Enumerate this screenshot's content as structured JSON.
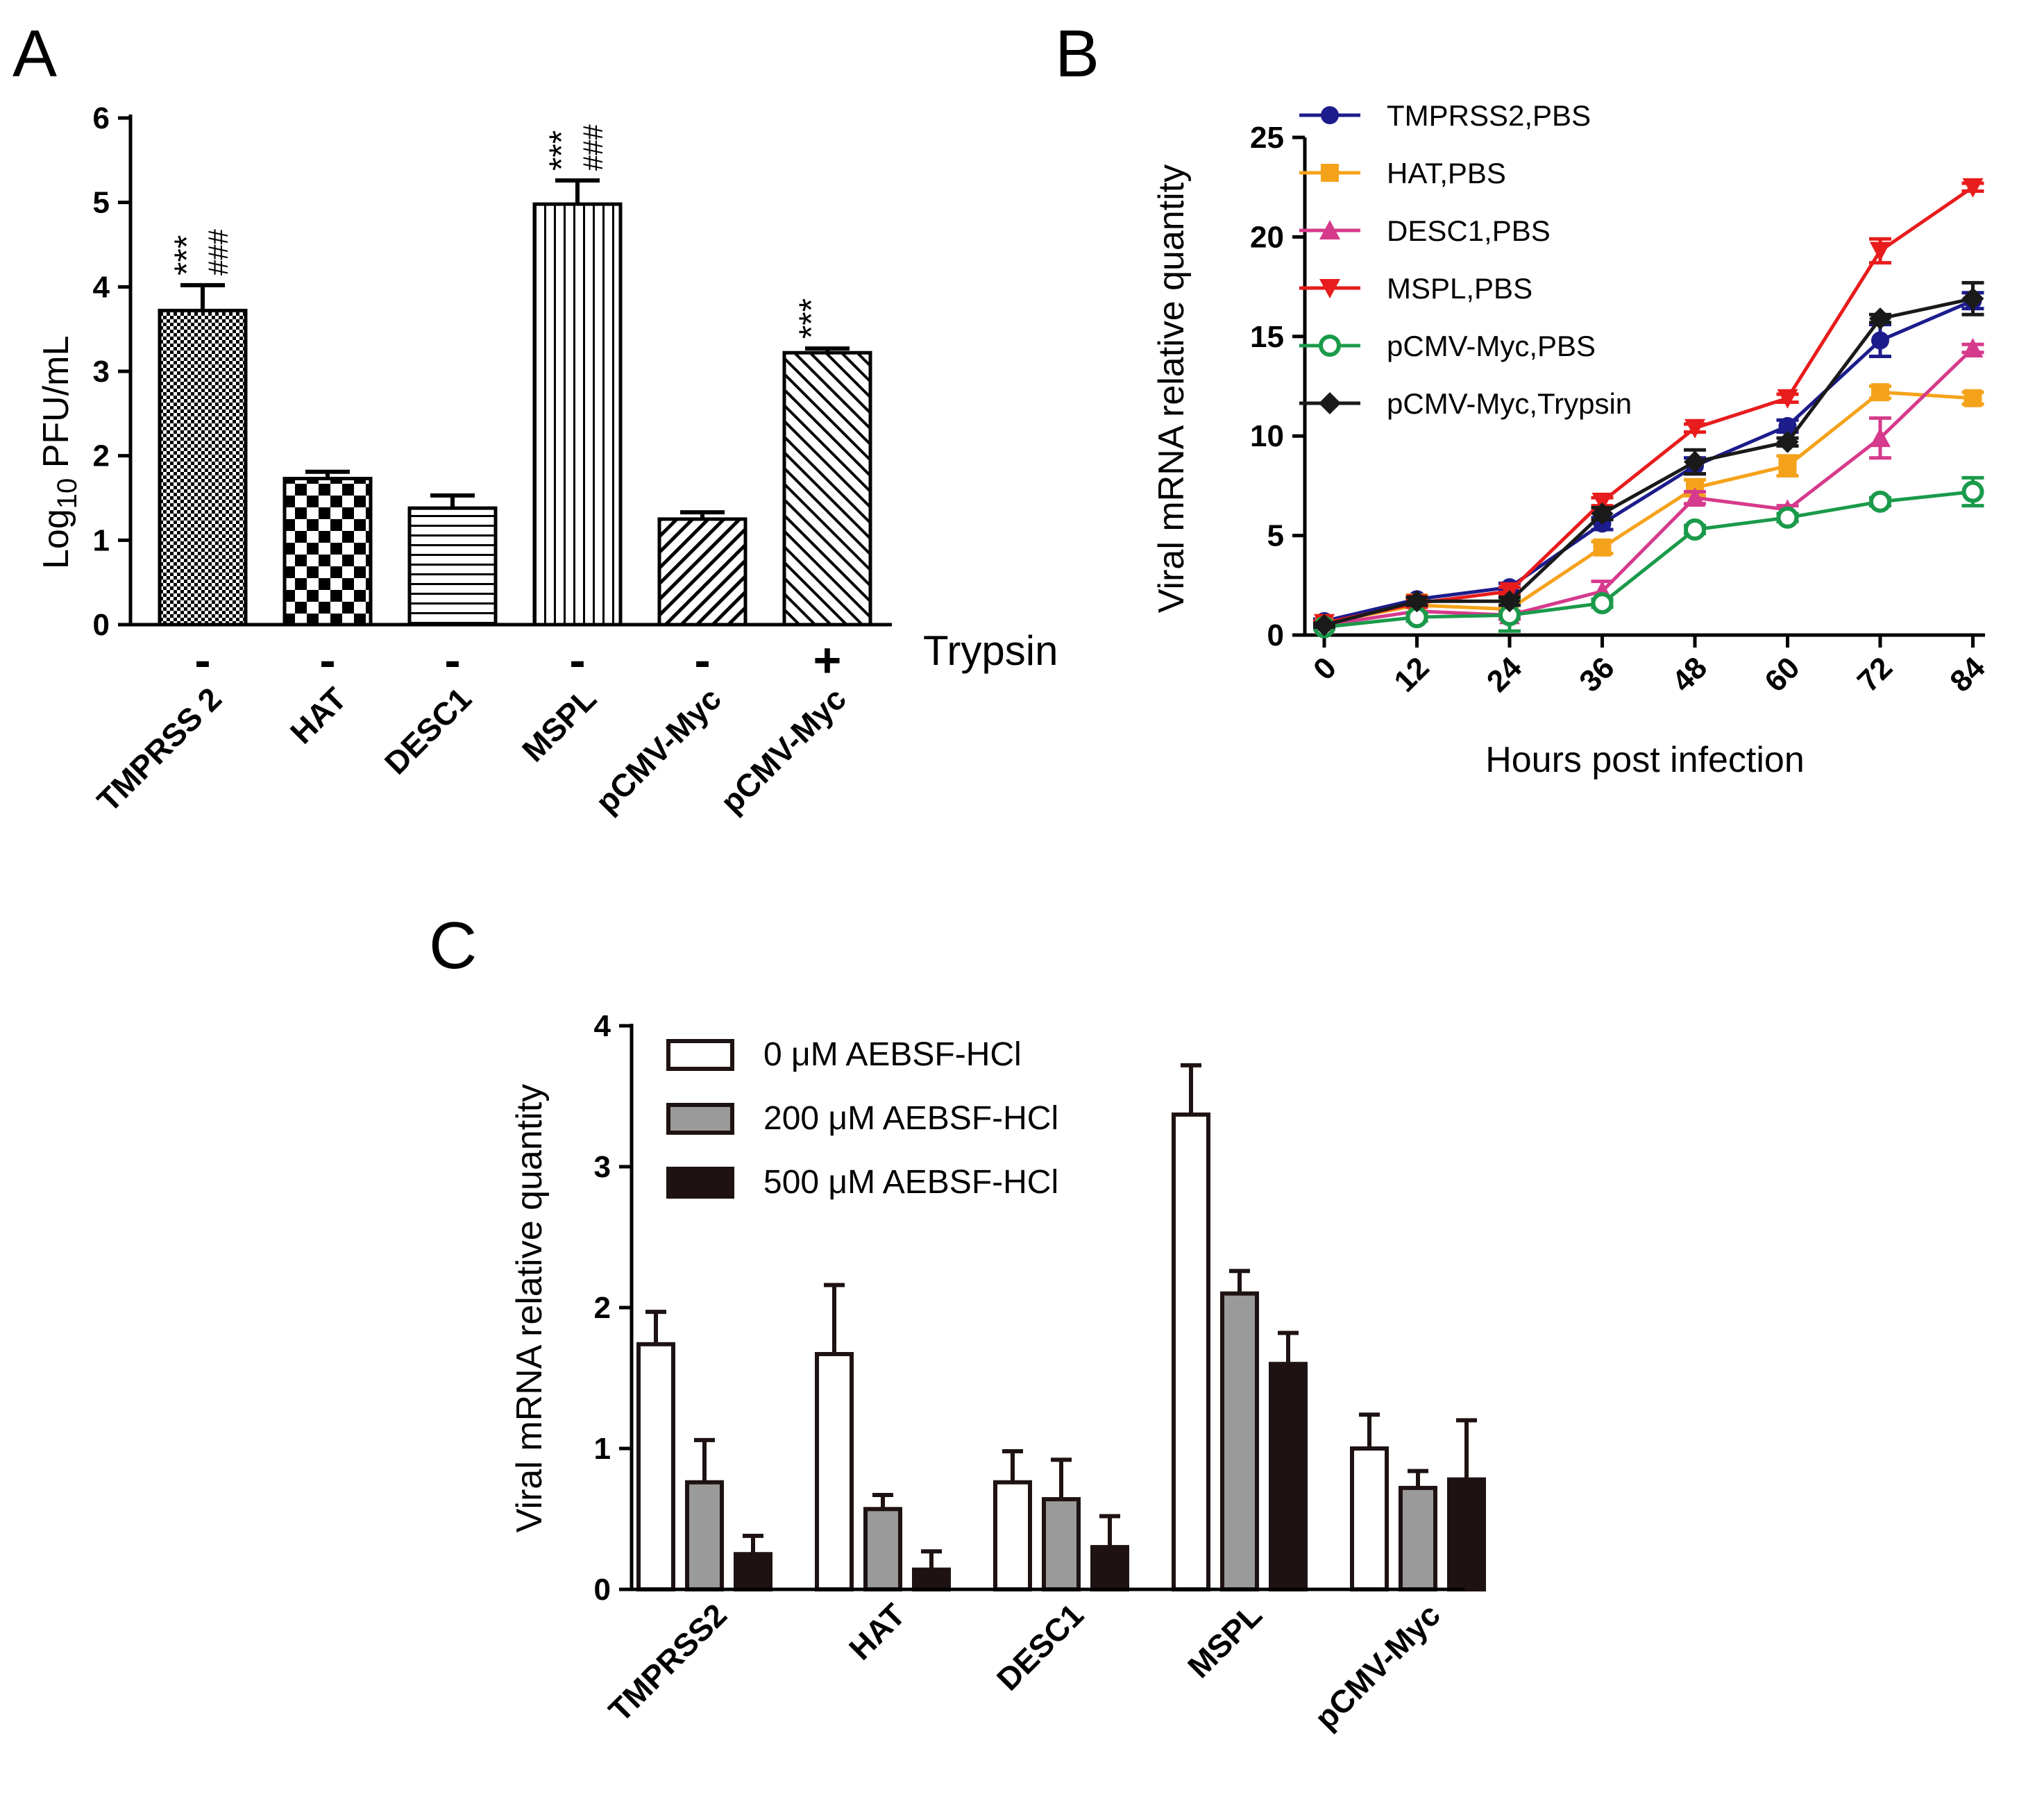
{
  "panel_labels": {
    "a": "A",
    "b": "B",
    "c": "C"
  },
  "chart_data": [
    {
      "panel": "A",
      "type": "bar",
      "title": "",
      "ylabel_main": "Log",
      "ylabel_sub": "10",
      "ylabel_rest": " PFU/mL",
      "ylim": [
        0,
        6
      ],
      "yticks": [
        "0",
        "1",
        "2",
        "3",
        "4",
        "5",
        "6"
      ],
      "categories": [
        "TMPRSS 2",
        "HAT",
        "DESC1",
        "MSPL",
        "pCMV-Myc",
        "pCMV-Myc"
      ],
      "values": [
        3.72,
        1.73,
        1.38,
        4.98,
        1.25,
        3.22
      ],
      "errors": [
        0.3,
        0.08,
        0.15,
        0.28,
        0.08,
        0.05
      ],
      "patterns": [
        "dots",
        "checker",
        "hlines",
        "vlines",
        "diag-right",
        "diag-left"
      ],
      "trypsin_title": "Trypsin",
      "trypsin_signs": [
        "-",
        "-",
        "-",
        "-",
        "-",
        "+"
      ],
      "sig_stars": [
        "***",
        "",
        "",
        "***",
        "",
        "***"
      ],
      "sig_hash": [
        "###",
        "",
        "",
        "###",
        "",
        ""
      ]
    },
    {
      "panel": "B",
      "type": "line",
      "xlabel": "Hours post infection",
      "ylabel": "Viral mRNA relative quantity",
      "x": [
        0,
        12,
        24,
        36,
        48,
        60,
        72,
        84
      ],
      "xticks": [
        "0",
        "12",
        "24",
        "36",
        "48",
        "60",
        "72",
        "84"
      ],
      "ylim": [
        0,
        25
      ],
      "yticks": [
        "0",
        "5",
        "10",
        "15",
        "20",
        "25"
      ],
      "series": [
        {
          "name": "TMPRSS2,PBS",
          "color": "#1c1c8c",
          "marker": "circle",
          "values": [
            0.7,
            1.8,
            2.4,
            5.6,
            8.5,
            10.5,
            14.8,
            16.8
          ],
          "errors": [
            0.1,
            0.2,
            0.2,
            0.3,
            0.4,
            0.3,
            0.8,
            0.4
          ]
        },
        {
          "name": "HAT,PBS",
          "color": "#f5a21b",
          "marker": "square",
          "values": [
            0.6,
            1.5,
            1.3,
            4.4,
            7.4,
            8.5,
            12.2,
            11.9
          ],
          "errors": [
            0.1,
            0.5,
            0.2,
            0.3,
            0.4,
            0.5,
            0.3,
            0.3
          ]
        },
        {
          "name": "DESC1,PBS",
          "color": "#d63a8c",
          "marker": "triangle-up",
          "values": [
            0.5,
            1.2,
            1.0,
            2.2,
            6.9,
            6.3,
            9.9,
            14.4
          ],
          "errors": [
            0.1,
            0.3,
            0.2,
            0.5,
            0.3,
            0.2,
            1.0,
            0.2
          ]
        },
        {
          "name": "MSPL,PBS",
          "color": "#e81c1c",
          "marker": "triangle-down",
          "values": [
            0.6,
            1.6,
            2.2,
            6.7,
            10.4,
            11.9,
            19.3,
            22.5
          ],
          "errors": [
            0.1,
            0.2,
            0.2,
            0.2,
            0.2,
            0.2,
            0.6,
            0.2
          ]
        },
        {
          "name": "pCMV-Myc,PBS",
          "color": "#1a9a4a",
          "marker": "circle-open",
          "values": [
            0.4,
            0.9,
            1.0,
            1.6,
            5.3,
            5.9,
            6.7,
            7.2
          ],
          "errors": [
            0.1,
            0.2,
            0.8,
            0.2,
            0.2,
            0.2,
            0.2,
            0.7
          ]
        },
        {
          "name": "pCMV-Myc,Trypsin",
          "color": "#1a1a1a",
          "marker": "diamond",
          "values": [
            0.5,
            1.7,
            1.7,
            6.1,
            8.7,
            9.7,
            15.9,
            16.9
          ],
          "errors": [
            0.1,
            0.2,
            0.2,
            0.3,
            0.6,
            0.2,
            0.2,
            0.8
          ]
        }
      ]
    },
    {
      "panel": "C",
      "type": "bar",
      "ylabel": "Viral mRNA relative quantity",
      "ylim": [
        0,
        4
      ],
      "yticks": [
        "0",
        "1",
        "2",
        "3",
        "4"
      ],
      "categories": [
        "TMPRSS2",
        "HAT",
        "DESC1",
        "MSPL",
        "pCMV-Myc"
      ],
      "series": [
        {
          "name": "0 μM AEBSF-HCl",
          "fill": "#ffffff",
          "values": [
            1.74,
            1.67,
            0.76,
            3.37,
            1.0
          ],
          "errors": [
            0.23,
            0.49,
            0.22,
            0.35,
            0.24
          ]
        },
        {
          "name": "200 μM AEBSF-HCl",
          "fill": "#9a9a9a",
          "values": [
            0.76,
            0.57,
            0.64,
            2.1,
            0.72
          ],
          "errors": [
            0.3,
            0.1,
            0.28,
            0.16,
            0.12
          ]
        },
        {
          "name": "500 μM AEBSF-HCl",
          "fill": "#1e1212",
          "values": [
            0.25,
            0.14,
            0.3,
            1.6,
            0.78
          ],
          "errors": [
            0.13,
            0.13,
            0.22,
            0.22,
            0.42
          ]
        }
      ]
    }
  ]
}
